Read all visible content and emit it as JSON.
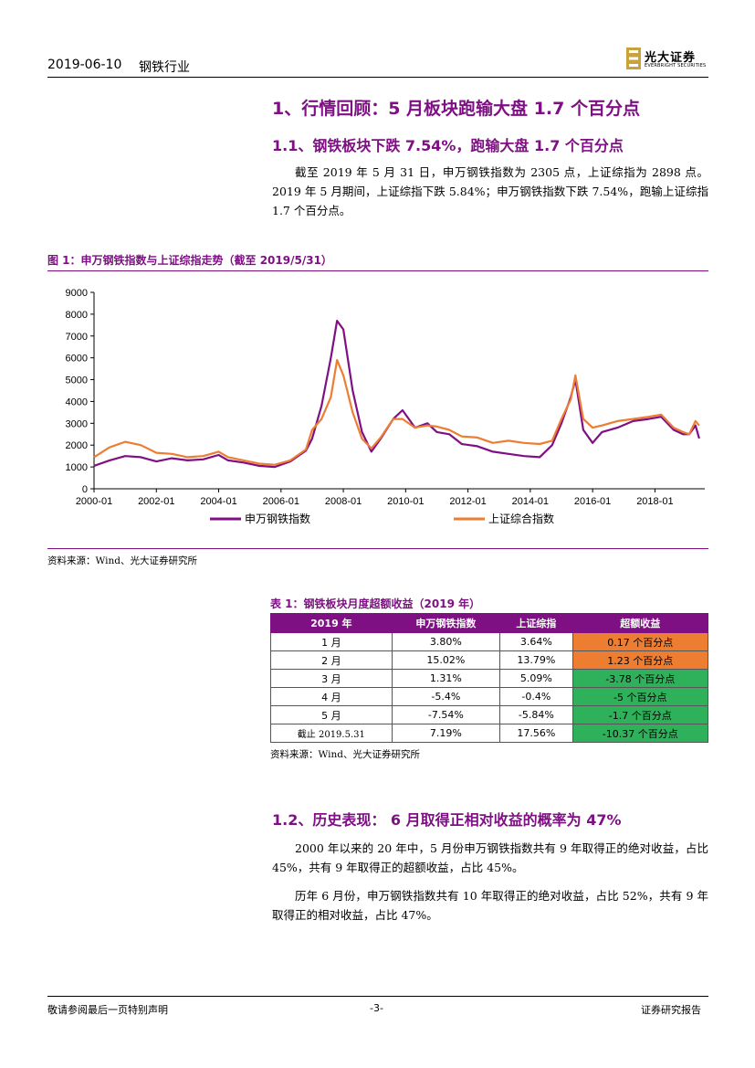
{
  "header": {
    "date": "2019-06-10",
    "industry": "钢铁行业",
    "logo_cn": "光大证券",
    "logo_en": "EVERBRIGHT SECURITIES"
  },
  "section1": {
    "title": "1、行情回顾：5 月板块跑输大盘 1.7 个百分点",
    "sub_title": "1.1、钢铁板块下跌 7.54%，跑输大盘 1.7 个百分点",
    "paragraph": "截至 2019 年 5 月 31 日，申万钢铁指数为 2305 点，上证综指为 2898 点。2019 年 5 月期间，上证综指下跌 5.84%；申万钢铁指数下跌 7.54%，跑输上证综指 1.7 个百分点。"
  },
  "figure1": {
    "title": "图 1：申万钢铁指数与上证综指走势（截至 2019/5/31）",
    "source": "资料来源：Wind、光大证券研究所"
  },
  "chart_data": {
    "type": "line",
    "title": "",
    "xlabel": "",
    "ylabel": "",
    "ylim": [
      0,
      9000
    ],
    "yticks": [
      "0",
      "1000",
      "2000",
      "3000",
      "4000",
      "5000",
      "6000",
      "7000",
      "8000",
      "9000"
    ],
    "xticks": [
      "2000-01",
      "2002-01",
      "2004-01",
      "2006-01",
      "2008-01",
      "2010-01",
      "2012-01",
      "2014-01",
      "2016-01",
      "2018-01"
    ],
    "x": [
      2000.0,
      2000.5,
      2001.0,
      2001.5,
      2002.0,
      2002.5,
      2003.0,
      2003.5,
      2004.0,
      2004.3,
      2004.8,
      2005.3,
      2005.8,
      2006.3,
      2006.8,
      2007.0,
      2007.3,
      2007.6,
      2007.8,
      2008.0,
      2008.3,
      2008.6,
      2008.9,
      2009.2,
      2009.6,
      2009.9,
      2010.3,
      2010.7,
      2011.0,
      2011.4,
      2011.8,
      2012.3,
      2012.8,
      2013.3,
      2013.8,
      2014.3,
      2014.7,
      2015.0,
      2015.3,
      2015.45,
      2015.7,
      2016.0,
      2016.3,
      2016.8,
      2017.3,
      2017.8,
      2018.2,
      2018.6,
      2018.9,
      2019.1,
      2019.3,
      2019.42
    ],
    "series": [
      {
        "name": "申万钢铁指数",
        "color": "#7f1084",
        "values": [
          1050,
          1300,
          1500,
          1450,
          1250,
          1400,
          1300,
          1350,
          1550,
          1300,
          1200,
          1050,
          1000,
          1250,
          1750,
          2300,
          3800,
          6000,
          7700,
          7300,
          4500,
          2600,
          1700,
          2300,
          3200,
          3600,
          2800,
          3000,
          2600,
          2500,
          2050,
          1950,
          1700,
          1600,
          1500,
          1450,
          2000,
          3000,
          4200,
          5000,
          2700,
          2100,
          2600,
          2800,
          3100,
          3200,
          3300,
          2700,
          2500,
          2500,
          2900,
          2305
        ]
      },
      {
        "name": "上证综合指数",
        "color": "#ed7d31",
        "values": [
          1450,
          1900,
          2150,
          2000,
          1650,
          1600,
          1450,
          1500,
          1700,
          1450,
          1300,
          1150,
          1100,
          1300,
          1800,
          2700,
          3200,
          4200,
          5900,
          5200,
          3500,
          2300,
          1850,
          2350,
          3200,
          3200,
          2800,
          2900,
          2850,
          2700,
          2400,
          2350,
          2100,
          2200,
          2100,
          2050,
          2200,
          3200,
          4100,
          5200,
          3200,
          2800,
          2900,
          3100,
          3200,
          3300,
          3400,
          2800,
          2600,
          2500,
          3100,
          2898
        ]
      }
    ],
    "legend": "bottom-center"
  },
  "table1": {
    "title": "表 1：钢铁板块月度超额收益（2019 年）",
    "headers": [
      "2019 年",
      "申万钢铁指数",
      "上证综指",
      "超额收益"
    ],
    "rows": [
      [
        "1 月",
        "3.80%",
        "3.64%",
        "0.17 个百分点"
      ],
      [
        "2 月",
        "15.02%",
        "13.79%",
        "1.23 个百分点"
      ],
      [
        "3 月",
        "1.31%",
        "5.09%",
        "-3.78 个百分点"
      ],
      [
        "4 月",
        "-5.4%",
        "-0.4%",
        "-5 个百分点"
      ],
      [
        "5 月",
        "-7.54%",
        "-5.84%",
        "-1.7 个百分点"
      ],
      [
        "截止 2019.5.31",
        "7.19%",
        "17.56%",
        "-10.37 个百分点"
      ]
    ],
    "row_status": [
      "pos",
      "pos",
      "neg",
      "neg",
      "neg",
      "neg"
    ],
    "source": "资料来源：Wind、光大证券研究所"
  },
  "section12": {
    "title": "1.2、历史表现： 6 月取得正相对收益的概率为 47%",
    "paragraph1": "2000 年以来的 20 年中，5 月份申万钢铁指数共有 9 年取得正的绝对收益，占比 45%，共有 9 年取得正的超额收益，占比 45%。",
    "paragraph2": "历年 6 月份，申万钢铁指数共有 10 年取得正的绝对收益，占比 52%，共有 9 年取得正的相对收益，占比 47%。"
  },
  "footer": {
    "left": "敬请参阅最后一页特别声明",
    "page": "-3-",
    "right": "证券研究报告"
  }
}
